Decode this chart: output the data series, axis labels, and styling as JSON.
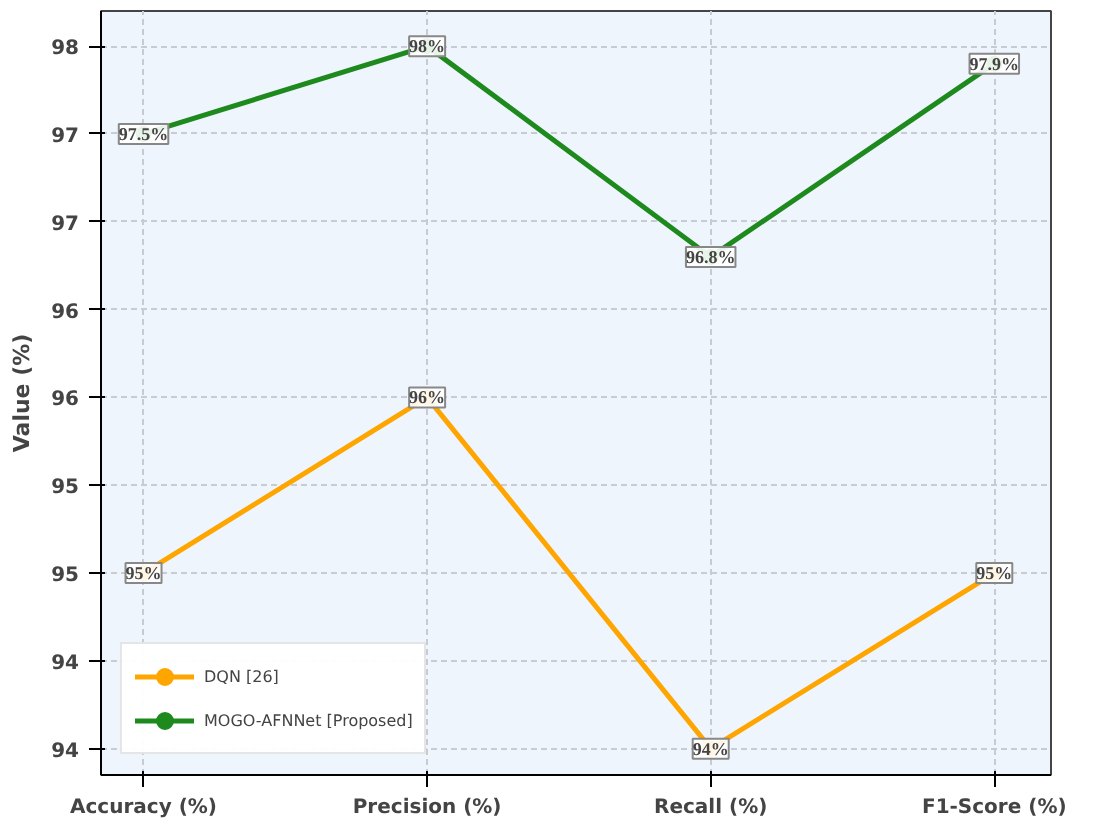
{
  "chart_data": {
    "type": "line",
    "ylabel": "Value (%)",
    "categories": [
      "Accuracy (%)",
      "Precision (%)",
      "Recall (%)",
      "F1-Score (%)"
    ],
    "series": [
      {
        "name": "DQN [26]",
        "color": "#ffa500",
        "values": [
          95,
          96,
          94,
          95
        ],
        "value_labels": [
          "95%",
          "96%",
          "94%",
          "95%"
        ]
      },
      {
        "name": "MOGO-AFNNet [Proposed]",
        "color": "#1e8a1e",
        "values": [
          97.5,
          98,
          96.8,
          97.9
        ],
        "value_labels": [
          "97.5%",
          "98%",
          "96.8%",
          "97.9%"
        ]
      }
    ],
    "ylim": [
      93.85,
      98.2
    ],
    "yticks": [
      {
        "value": 94,
        "label": "94"
      },
      {
        "value": 94.5,
        "label": "94"
      },
      {
        "value": 95,
        "label": "95"
      },
      {
        "value": 95.5,
        "label": "95"
      },
      {
        "value": 96,
        "label": "96"
      },
      {
        "value": 96.5,
        "label": "96"
      },
      {
        "value": 97,
        "label": "97"
      },
      {
        "value": 97.5,
        "label": "97"
      },
      {
        "value": 98,
        "label": "98"
      }
    ],
    "grid": true,
    "legend": "bottom left",
    "marker": "circle",
    "line_style": "solid"
  }
}
